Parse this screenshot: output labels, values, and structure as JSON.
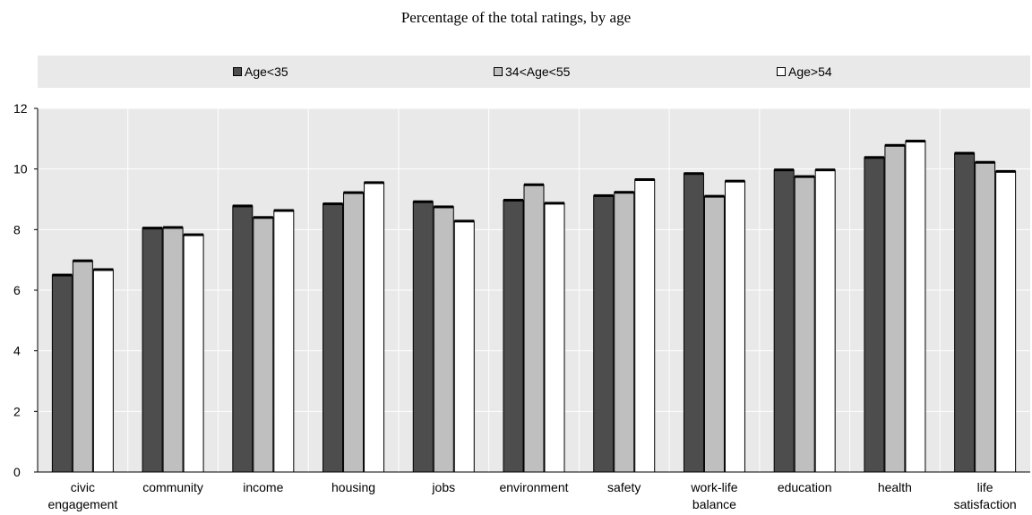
{
  "chart_data": {
    "type": "bar",
    "title": "Percentage of the total ratings, by age",
    "categories": [
      [
        "civic",
        "engagement"
      ],
      [
        "community"
      ],
      [
        "income"
      ],
      [
        "housing"
      ],
      [
        "jobs"
      ],
      [
        "environment"
      ],
      [
        "safety"
      ],
      [
        "work-life",
        "balance"
      ],
      [
        "education"
      ],
      [
        "health"
      ],
      [
        "life",
        "satisfaction"
      ]
    ],
    "series": [
      {
        "name": "Age<35",
        "color": "#4d4d4d",
        "values": [
          6.5,
          8.05,
          8.78,
          8.85,
          8.92,
          8.97,
          9.12,
          9.85,
          9.97,
          10.38,
          10.52
        ]
      },
      {
        "name": "34<Age<55",
        "color": "#bfbfbf",
        "values": [
          6.97,
          8.07,
          8.4,
          9.22,
          8.75,
          9.48,
          9.23,
          9.1,
          9.75,
          10.78,
          10.22
        ]
      },
      {
        "name": "Age>54",
        "color": "#ffffff",
        "values": [
          6.68,
          7.83,
          8.63,
          9.55,
          8.28,
          8.87,
          9.65,
          9.6,
          9.97,
          10.92,
          9.92
        ]
      }
    ],
    "y_ticks": [
      "0",
      "2",
      "4",
      "6",
      "8",
      "10",
      "12"
    ],
    "ylim": [
      0,
      12
    ],
    "grid": true,
    "legend_position": "top",
    "plot_background": "#e9e9e9"
  }
}
